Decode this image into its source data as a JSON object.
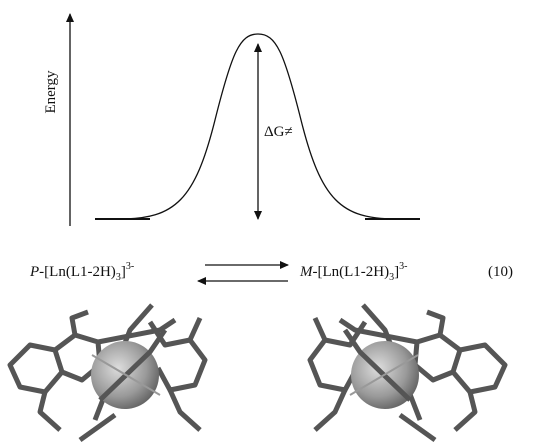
{
  "axis_label": "Energy",
  "barrier_label": "ΔG≠",
  "equation": {
    "left": {
      "isomer": "P",
      "formula": "-[Ln(L1-2H)",
      "subscript": "3",
      "bracket": "]",
      "charge": "3-"
    },
    "right": {
      "isomer": "M",
      "formula": "-[Ln(L1-2H)",
      "subscript": "3",
      "bracket": "]",
      "charge": "3-"
    },
    "number": "(10)"
  }
}
